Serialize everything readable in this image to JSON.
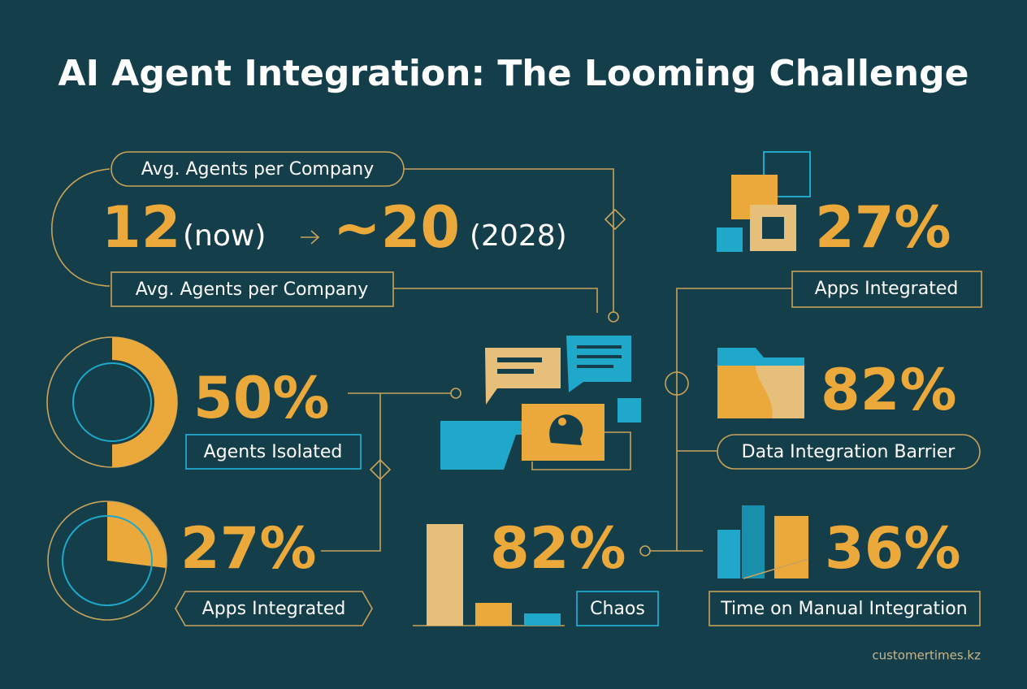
{
  "title": "AI Agent Integration: The Looming Challenge",
  "agents_forecast": {
    "label_top": "Avg. Agents per Company",
    "now_value": "12",
    "now_label": "(now)",
    "future_value": "~20",
    "future_label": "(2028)",
    "label_bottom": "Avg. Agents per Company"
  },
  "stats": [
    {
      "percent": 50,
      "text": "50%",
      "caption": "Agents Isolated"
    },
    {
      "percent": 27,
      "text": "27%",
      "caption": "Apps Integrated"
    },
    {
      "text": "82%",
      "caption": "Chaos"
    },
    {
      "text": "27%",
      "caption": "Apps Integrated"
    },
    {
      "text": "82%",
      "caption": "Data Integration Barrier"
    },
    {
      "text": "36%",
      "caption": "Time on Manual Integration"
    }
  ],
  "footer": "customertimes.kz"
}
